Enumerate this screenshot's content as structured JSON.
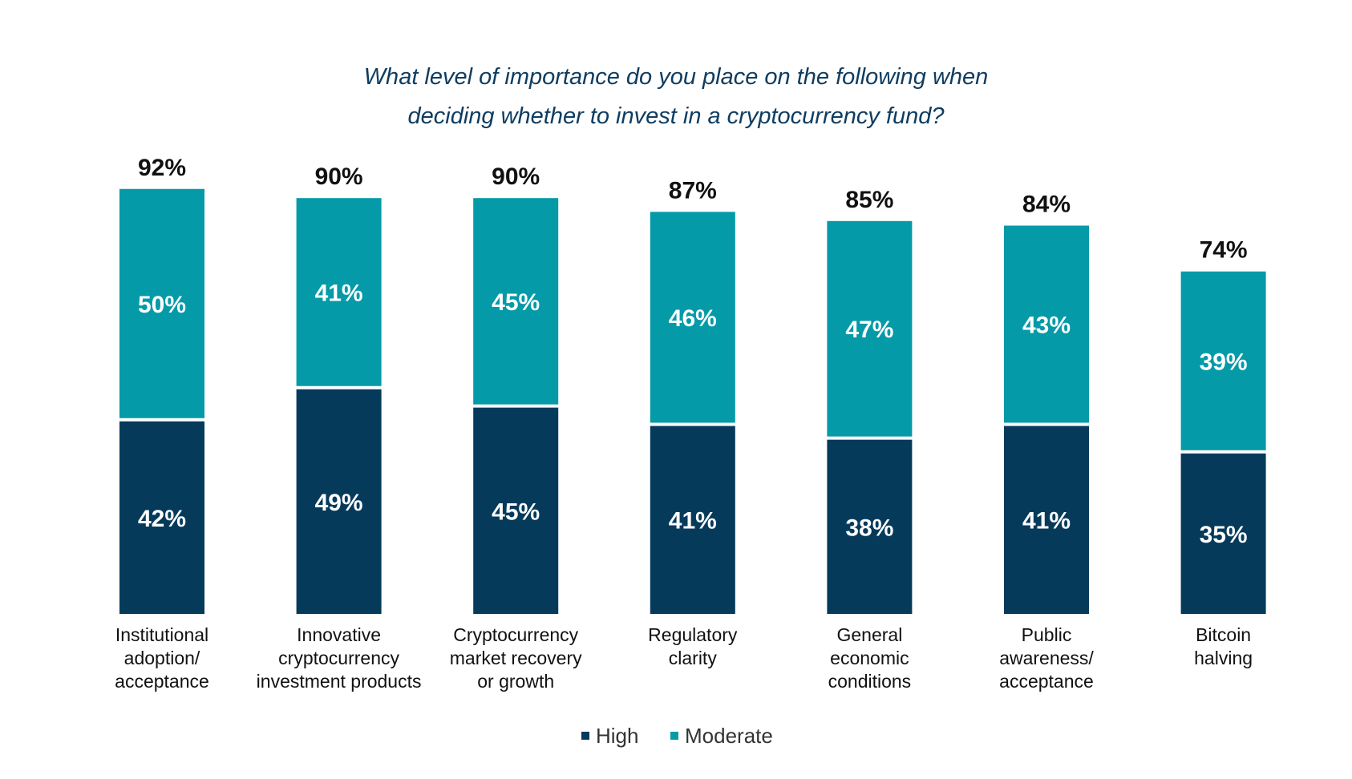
{
  "chart_data": {
    "type": "bar",
    "stacked": true,
    "title_lines": [
      "What level of importance do you place on the following when",
      "deciding whether to invest in a cryptocurrency fund?"
    ],
    "categories": [
      [
        "Institutional",
        "adoption/",
        "acceptance"
      ],
      [
        "Innovative",
        "cryptocurrency",
        "investment products"
      ],
      [
        "Cryptocurrency",
        "market recovery",
        "or growth"
      ],
      [
        "Regulatory",
        "clarity"
      ],
      [
        "General",
        "economic",
        "conditions"
      ],
      [
        "Public",
        "awareness/",
        "acceptance"
      ],
      [
        "Bitcoin",
        "halving"
      ]
    ],
    "series": [
      {
        "name": "High",
        "color": "#053a5b",
        "values": [
          42,
          49,
          45,
          41,
          38,
          41,
          35
        ]
      },
      {
        "name": "Moderate",
        "color": "#049aa8",
        "values": [
          50,
          41,
          45,
          46,
          47,
          43,
          39
        ]
      }
    ],
    "totals": [
      92,
      90,
      90,
      87,
      85,
      84,
      74
    ],
    "value_suffix": "%",
    "ylim": [
      0,
      100
    ],
    "grid": false,
    "legend_position": "bottom-center"
  }
}
